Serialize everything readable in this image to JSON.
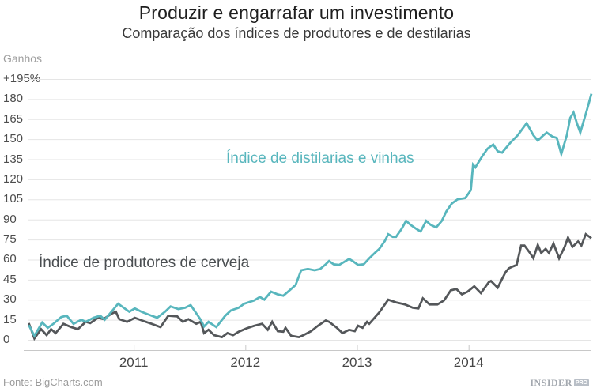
{
  "header": {
    "title": "Produzir e engarrafar um investimento",
    "subtitle": "Comparação dos índices de produtores e de destilarias"
  },
  "axis_unit_label": "Ganhos",
  "footer": {
    "source": "Fonte: BigCharts.com",
    "brand": "INSIDER",
    "brand_suffix": "PRO"
  },
  "colors": {
    "distillers_line": "#58b6bd",
    "brewers_line": "#54575a",
    "grid": "#e5e5e5",
    "axis": "#c8c8c8",
    "distillers_text": "#58b6bd",
    "brewers_text": "#4a4e51"
  },
  "chart_data": {
    "type": "line",
    "title": "Produzir e engarrafar um investimento",
    "subtitle": "Comparação dos índices de produtores e de destilarias",
    "ylabel": "Ganhos (%)",
    "xlabel": "",
    "grid": true,
    "legend_position": "inline-annotations",
    "y_axis": {
      "min": 0,
      "max": 195,
      "tick_step": 15,
      "ticks": [
        {
          "v": 195,
          "label": "+195%"
        },
        {
          "v": 180,
          "label": "180"
        },
        {
          "v": 165,
          "label": "165"
        },
        {
          "v": 150,
          "label": "150"
        },
        {
          "v": 135,
          "label": "135"
        },
        {
          "v": 120,
          "label": "120"
        },
        {
          "v": 105,
          "label": "105"
        },
        {
          "v": 90,
          "label": "90"
        },
        {
          "v": 75,
          "label": "75"
        },
        {
          "v": 60,
          "label": "60"
        },
        {
          "v": 45,
          "label": "45"
        },
        {
          "v": 30,
          "label": "30"
        },
        {
          "v": 15,
          "label": "15"
        },
        {
          "v": 0,
          "label": "0"
        }
      ]
    },
    "x_axis": {
      "min": 2010.05,
      "max": 2015.1,
      "ticks": [
        {
          "v": 2011,
          "label": "2011"
        },
        {
          "v": 2012,
          "label": "2012"
        },
        {
          "v": 2013,
          "label": "2013"
        },
        {
          "v": 2014,
          "label": "2014"
        }
      ]
    },
    "series": [
      {
        "name": "Índice de produtores de cerveja",
        "color": "#54575a",
        "points": [
          [
            2010.06,
            12.5
          ],
          [
            2010.11,
            1
          ],
          [
            2010.17,
            8
          ],
          [
            2010.22,
            3.5
          ],
          [
            2010.26,
            8
          ],
          [
            2010.3,
            5
          ],
          [
            2010.37,
            12
          ],
          [
            2010.44,
            9.5
          ],
          [
            2010.5,
            8
          ],
          [
            2010.57,
            13.5
          ],
          [
            2010.61,
            12.5
          ],
          [
            2010.68,
            16.5
          ],
          [
            2010.73,
            15.5
          ],
          [
            2010.8,
            19.5
          ],
          [
            2010.84,
            21
          ],
          [
            2010.87,
            15.5
          ],
          [
            2010.94,
            13.5
          ],
          [
            2011.01,
            16.5
          ],
          [
            2011.09,
            14
          ],
          [
            2011.16,
            12
          ],
          [
            2011.24,
            9.5
          ],
          [
            2011.31,
            18
          ],
          [
            2011.39,
            17.5
          ],
          [
            2011.44,
            13.5
          ],
          [
            2011.49,
            15.5
          ],
          [
            2011.56,
            12
          ],
          [
            2011.6,
            13.5
          ],
          [
            2011.63,
            5
          ],
          [
            2011.67,
            7.5
          ],
          [
            2011.72,
            3.5
          ],
          [
            2011.79,
            2
          ],
          [
            2011.84,
            5
          ],
          [
            2011.89,
            3.5
          ],
          [
            2011.94,
            6
          ],
          [
            2012.01,
            8.5
          ],
          [
            2012.08,
            10.5
          ],
          [
            2012.15,
            12
          ],
          [
            2012.2,
            7.5
          ],
          [
            2012.24,
            13.5
          ],
          [
            2012.29,
            6.5
          ],
          [
            2012.34,
            6
          ],
          [
            2012.36,
            9
          ],
          [
            2012.41,
            3
          ],
          [
            2012.48,
            2
          ],
          [
            2012.52,
            3.5
          ],
          [
            2012.59,
            6.5
          ],
          [
            2012.65,
            10.5
          ],
          [
            2012.72,
            14.5
          ],
          [
            2012.75,
            13.5
          ],
          [
            2012.82,
            9
          ],
          [
            2012.87,
            5
          ],
          [
            2012.93,
            7.5
          ],
          [
            2012.98,
            6.5
          ],
          [
            2013.01,
            10.5
          ],
          [
            2013.05,
            9
          ],
          [
            2013.09,
            13.5
          ],
          [
            2013.11,
            12
          ],
          [
            2013.2,
            20.5
          ],
          [
            2013.28,
            30
          ],
          [
            2013.35,
            28
          ],
          [
            2013.43,
            26.5
          ],
          [
            2013.5,
            24
          ],
          [
            2013.55,
            23.5
          ],
          [
            2013.59,
            31
          ],
          [
            2013.65,
            26.5
          ],
          [
            2013.72,
            26.5
          ],
          [
            2013.78,
            29.5
          ],
          [
            2013.84,
            37
          ],
          [
            2013.89,
            38
          ],
          [
            2013.94,
            34
          ],
          [
            2013.99,
            36
          ],
          [
            2014.05,
            40
          ],
          [
            2014.11,
            35
          ],
          [
            2014.18,
            43
          ],
          [
            2014.2,
            44
          ],
          [
            2014.26,
            39
          ],
          [
            2014.33,
            50.5
          ],
          [
            2014.36,
            53.5
          ],
          [
            2014.4,
            55
          ],
          [
            2014.43,
            56
          ],
          [
            2014.47,
            70.5
          ],
          [
            2014.5,
            70.5
          ],
          [
            2014.55,
            65
          ],
          [
            2014.58,
            61
          ],
          [
            2014.62,
            71
          ],
          [
            2014.65,
            65
          ],
          [
            2014.69,
            68
          ],
          [
            2014.72,
            65
          ],
          [
            2014.76,
            72
          ],
          [
            2014.81,
            61
          ],
          [
            2014.86,
            69.5
          ],
          [
            2014.89,
            76.5
          ],
          [
            2014.93,
            69.5
          ],
          [
            2014.98,
            73.5
          ],
          [
            2015.01,
            70.5
          ],
          [
            2015.05,
            79
          ],
          [
            2015.1,
            76
          ]
        ]
      },
      {
        "name": "Índice de distilarias e vinhas",
        "color": "#58b6bd",
        "points": [
          [
            2010.06,
            11
          ],
          [
            2010.11,
            3
          ],
          [
            2010.18,
            13
          ],
          [
            2010.23,
            9
          ],
          [
            2010.28,
            12
          ],
          [
            2010.35,
            17
          ],
          [
            2010.4,
            18
          ],
          [
            2010.46,
            12
          ],
          [
            2010.53,
            15
          ],
          [
            2010.57,
            13.5
          ],
          [
            2010.64,
            16.5
          ],
          [
            2010.7,
            18
          ],
          [
            2010.74,
            15
          ],
          [
            2010.8,
            21
          ],
          [
            2010.86,
            27
          ],
          [
            2010.91,
            24
          ],
          [
            2010.96,
            21
          ],
          [
            2011.01,
            23.5
          ],
          [
            2011.07,
            21
          ],
          [
            2011.16,
            18
          ],
          [
            2011.21,
            16.5
          ],
          [
            2011.28,
            21
          ],
          [
            2011.33,
            25
          ],
          [
            2011.4,
            23
          ],
          [
            2011.46,
            24
          ],
          [
            2011.51,
            26
          ],
          [
            2011.6,
            15
          ],
          [
            2011.63,
            10
          ],
          [
            2011.67,
            13.5
          ],
          [
            2011.74,
            9.5
          ],
          [
            2011.82,
            18
          ],
          [
            2011.87,
            22
          ],
          [
            2011.94,
            24
          ],
          [
            2011.99,
            27
          ],
          [
            2012.08,
            29.5
          ],
          [
            2012.13,
            32
          ],
          [
            2012.17,
            30
          ],
          [
            2012.23,
            36
          ],
          [
            2012.29,
            34
          ],
          [
            2012.34,
            33
          ],
          [
            2012.41,
            38
          ],
          [
            2012.45,
            41
          ],
          [
            2012.5,
            52
          ],
          [
            2012.56,
            53
          ],
          [
            2012.62,
            52
          ],
          [
            2012.67,
            53
          ],
          [
            2012.72,
            56.5
          ],
          [
            2012.75,
            59
          ],
          [
            2012.79,
            56.5
          ],
          [
            2012.84,
            56
          ],
          [
            2012.88,
            58
          ],
          [
            2012.93,
            60.5
          ],
          [
            2012.96,
            59
          ],
          [
            2013.01,
            56
          ],
          [
            2013.06,
            56.5
          ],
          [
            2013.11,
            61
          ],
          [
            2013.16,
            65
          ],
          [
            2013.2,
            68
          ],
          [
            2013.25,
            74
          ],
          [
            2013.28,
            79
          ],
          [
            2013.32,
            77
          ],
          [
            2013.35,
            77
          ],
          [
            2013.4,
            83
          ],
          [
            2013.44,
            89
          ],
          [
            2013.48,
            86
          ],
          [
            2013.53,
            83
          ],
          [
            2013.57,
            81
          ],
          [
            2013.62,
            89
          ],
          [
            2013.66,
            86
          ],
          [
            2013.71,
            84
          ],
          [
            2013.76,
            89
          ],
          [
            2013.8,
            96
          ],
          [
            2013.85,
            102
          ],
          [
            2013.9,
            105
          ],
          [
            2013.97,
            106
          ],
          [
            2014.02,
            112
          ],
          [
            2014.04,
            131
          ],
          [
            2014.06,
            129
          ],
          [
            2014.12,
            137
          ],
          [
            2014.17,
            143
          ],
          [
            2014.22,
            146
          ],
          [
            2014.26,
            141
          ],
          [
            2014.3,
            140
          ],
          [
            2014.37,
            147
          ],
          [
            2014.44,
            153
          ],
          [
            2014.52,
            162
          ],
          [
            2014.58,
            153
          ],
          [
            2014.62,
            149
          ],
          [
            2014.67,
            153
          ],
          [
            2014.7,
            155
          ],
          [
            2014.75,
            152
          ],
          [
            2014.79,
            151
          ],
          [
            2014.83,
            139
          ],
          [
            2014.88,
            153
          ],
          [
            2014.91,
            166
          ],
          [
            2014.94,
            170
          ],
          [
            2014.97,
            162
          ],
          [
            2015.0,
            155
          ],
          [
            2015.06,
            172
          ],
          [
            2015.1,
            184
          ]
        ]
      }
    ]
  }
}
